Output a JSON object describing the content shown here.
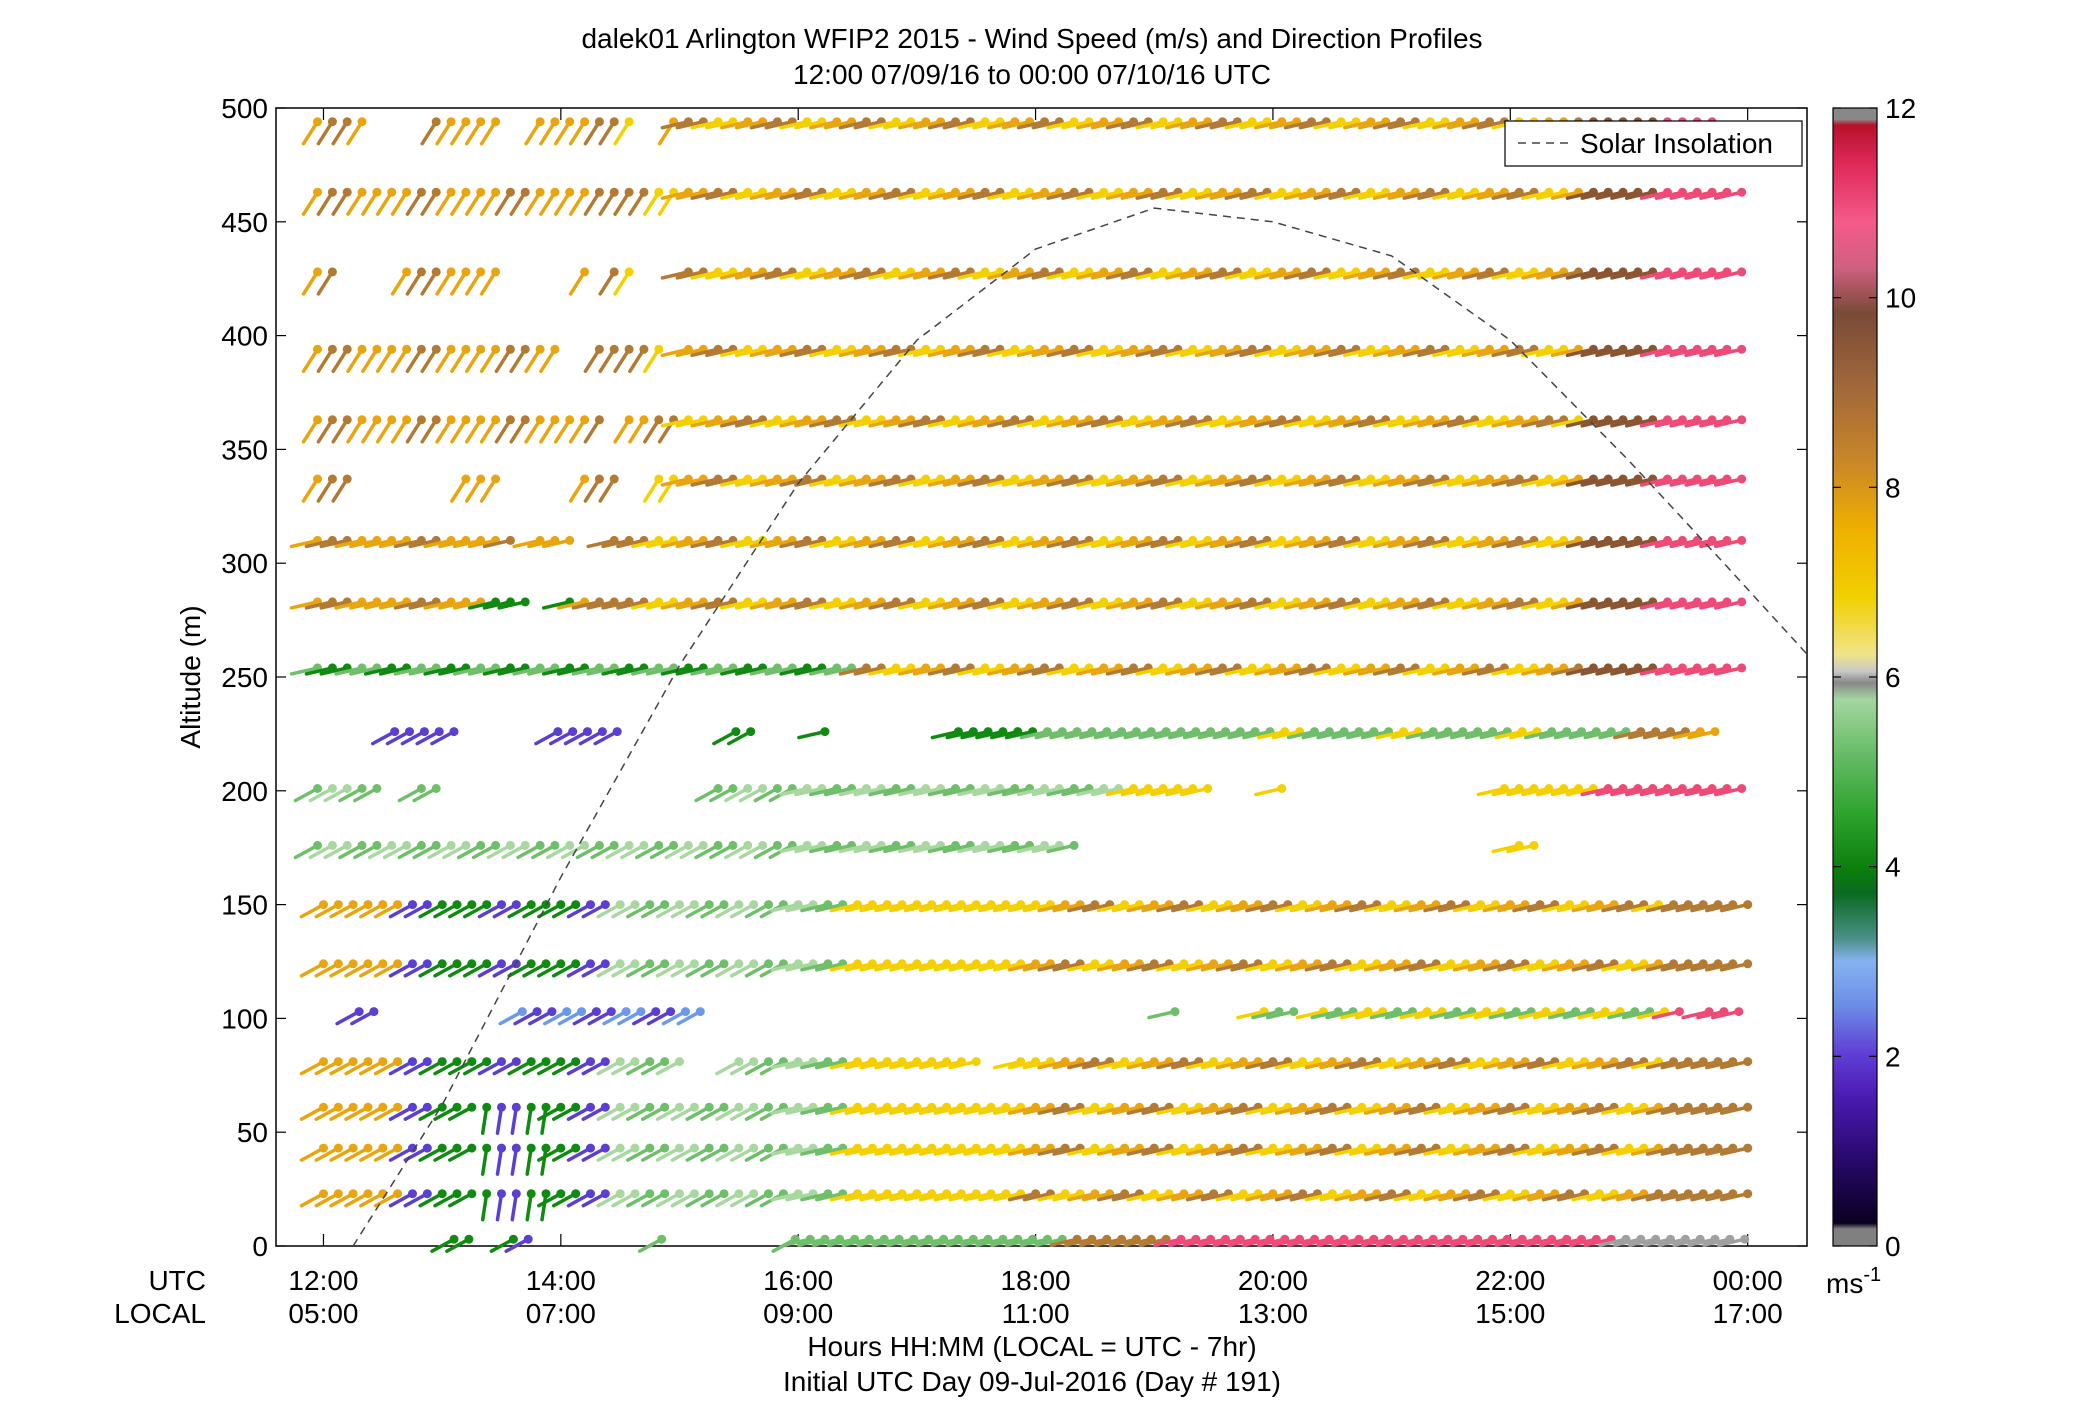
{
  "chart_data": {
    "type": "scatter",
    "title": "dalek01 Arlington WFIP2 2015 - Wind Speed (m/s) and Direction Profiles",
    "subtitle": "12:00 07/09/16 to 00:00 07/10/16  UTC",
    "ylabel": "Altitude (m)",
    "xlabel": "Hours HH:MM  (LOCAL = UTC - 7hr)",
    "xlabel2": "Initial UTC Day 09-Jul-2016 (Day # 191)",
    "x_row_labels": [
      "UTC",
      "LOCAL"
    ],
    "xticks_utc": [
      "12:00",
      "14:00",
      "16:00",
      "18:00",
      "20:00",
      "22:00",
      "00:00"
    ],
    "xticks_local": [
      "05:00",
      "07:00",
      "09:00",
      "11:00",
      "13:00",
      "15:00",
      "17:00"
    ],
    "xlim_hours": [
      11.6,
      24.5
    ],
    "yticks": [
      "0",
      "50",
      "100",
      "150",
      "200",
      "250",
      "300",
      "350",
      "400",
      "450",
      "500"
    ],
    "ylim": [
      0,
      500
    ],
    "colorbar": {
      "ticks": [
        "0",
        "2",
        "4",
        "6",
        "8",
        "10",
        "12"
      ],
      "range": [
        0,
        12
      ],
      "unit_base": "ms",
      "unit_exp": "-1"
    },
    "legend": {
      "label": "Solar Insolation",
      "placement": "top-right"
    },
    "solar_insolation": {
      "x_hours": [
        12.25,
        13,
        14,
        15,
        16,
        17,
        18,
        19,
        20,
        21,
        22,
        23,
        23.8,
        24.5
      ],
      "altitude_equiv": [
        0,
        62,
        162,
        255,
        335,
        398,
        438,
        456,
        450,
        435,
        398,
        345,
        300,
        260
      ]
    },
    "levels": [
      {
        "alt": 3,
        "from": 13.1,
        "to": 24.0,
        "gaps": [
          [
            13.3,
            13.5
          ],
          [
            13.8,
            14.1
          ],
          [
            14.2,
            14.8
          ],
          [
            14.95,
            15.85
          ]
        ]
      },
      {
        "alt": 23,
        "from": 12.0,
        "to": 24.0,
        "gaps": []
      },
      {
        "alt": 43,
        "from": 12.0,
        "to": 24.0,
        "gaps": []
      },
      {
        "alt": 61,
        "from": 12.0,
        "to": 24.0,
        "gaps": []
      },
      {
        "alt": 81,
        "from": 12.0,
        "to": 24.0,
        "gaps": [
          [
            15.05,
            15.4
          ],
          [
            17.55,
            17.8
          ]
        ]
      },
      {
        "alt": 103,
        "from": 12.3,
        "to": 24.0,
        "gaps": [
          [
            12.5,
            13.65
          ],
          [
            15.25,
            19.05
          ],
          [
            19.3,
            19.8
          ],
          [
            20.25,
            20.35
          ],
          [
            23.5,
            23.6
          ]
        ]
      },
      {
        "alt": 124,
        "from": 12.0,
        "to": 24.0,
        "gaps": []
      },
      {
        "alt": 150,
        "from": 12.0,
        "to": 24.0,
        "gaps": []
      },
      {
        "alt": 176,
        "from": 11.95,
        "to": 24.0,
        "gaps": [
          [
            18.4,
            22.0
          ],
          [
            22.3,
            24.1
          ]
        ]
      },
      {
        "alt": 201,
        "from": 11.95,
        "to": 24.0,
        "gaps": [
          [
            12.5,
            12.7
          ],
          [
            13.0,
            15.3
          ],
          [
            19.55,
            19.95
          ],
          [
            20.15,
            21.9
          ]
        ]
      },
      {
        "alt": 226,
        "from": 12.6,
        "to": 23.8,
        "gaps": [
          [
            13.2,
            13.95
          ],
          [
            14.6,
            15.4
          ],
          [
            15.7,
            16.1
          ],
          [
            16.3,
            17.3
          ]
        ]
      },
      {
        "alt": 254,
        "from": 11.95,
        "to": 24.0,
        "gaps": []
      },
      {
        "alt": 283,
        "from": 11.95,
        "to": 24.0,
        "gaps": [
          [
            13.75,
            14.05
          ]
        ]
      },
      {
        "alt": 310,
        "from": 11.95,
        "to": 24.0,
        "gaps": [
          [
            13.6,
            13.75
          ],
          [
            14.15,
            14.4
          ]
        ]
      },
      {
        "alt": 337,
        "from": 11.95,
        "to": 24.0,
        "gaps": [
          [
            12.3,
            13.1
          ],
          [
            13.55,
            14.1
          ],
          [
            14.55,
            14.7
          ]
        ]
      },
      {
        "alt": 363,
        "from": 11.95,
        "to": 24.0,
        "gaps": [
          [
            14.35,
            14.45
          ]
        ]
      },
      {
        "alt": 394,
        "from": 11.95,
        "to": 24.0,
        "gaps": [
          [
            14.0,
            14.2
          ],
          [
            14.9,
            15.0
          ]
        ]
      },
      {
        "alt": 428,
        "from": 11.95,
        "to": 24.0,
        "gaps": [
          [
            12.2,
            12.6
          ],
          [
            13.5,
            14.15
          ],
          [
            14.3,
            14.4
          ],
          [
            14.7,
            15.0
          ]
        ]
      },
      {
        "alt": 463,
        "from": 11.95,
        "to": 24.0,
        "gaps": []
      },
      {
        "alt": 494,
        "from": 11.95,
        "to": 23.7,
        "gaps": [
          [
            12.4,
            12.9
          ],
          [
            13.5,
            13.75
          ],
          [
            14.7,
            14.9
          ]
        ]
      }
    ],
    "colors": {
      "yellow": "#f4d000",
      "orange": "#e8a50f",
      "brown": "#b27a32",
      "dark_brown": "#8a5530",
      "pink": "#ee4a78",
      "green": "#118a11",
      "light_green": "#6fbf6a",
      "pale_green": "#a8d8a0",
      "blue_purple": "#5a3fd0",
      "light_blue": "#6b9ae8",
      "gray": "#a0a0a0",
      "teal": "#2b7a6a"
    }
  }
}
